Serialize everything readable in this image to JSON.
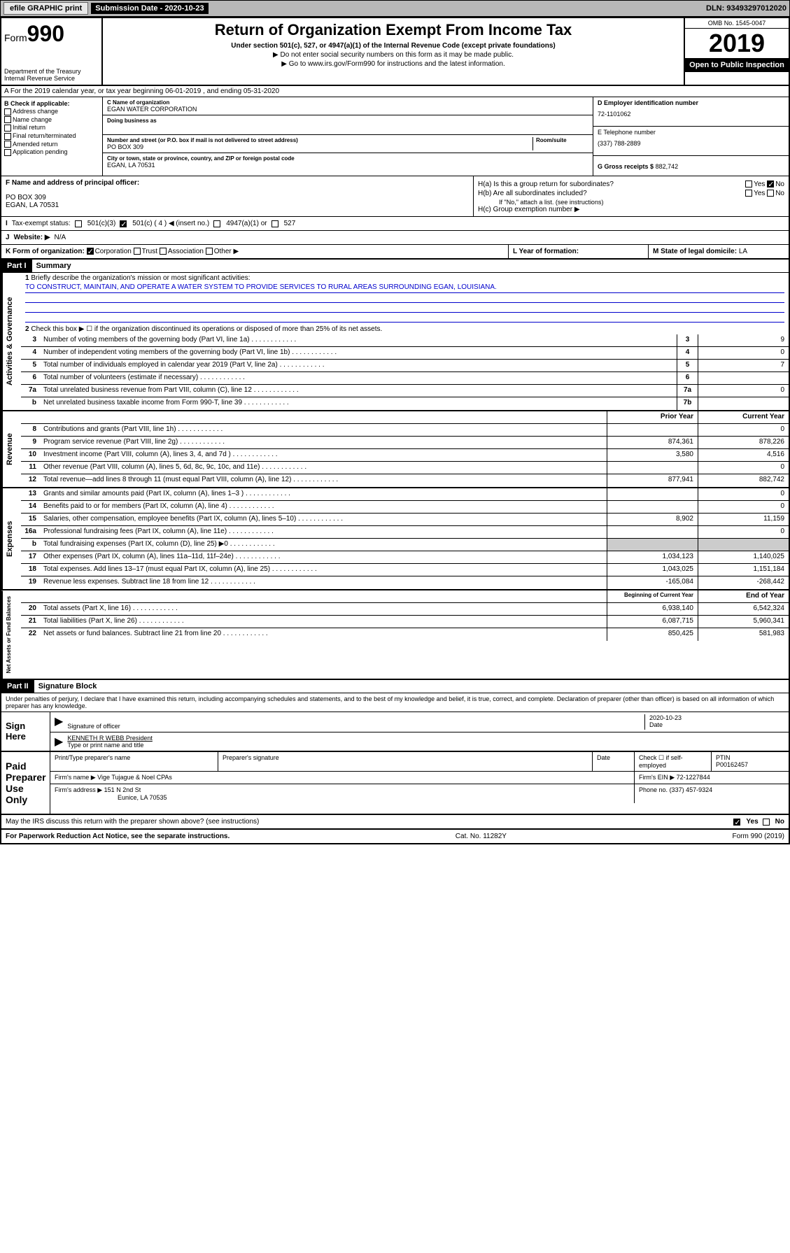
{
  "topbar": {
    "efile": "efile GRAPHIC print",
    "subdate_label": "Submission Date - 2020-10-23",
    "dln": "DLN: 93493297012020"
  },
  "header": {
    "form_label": "Form",
    "form_num": "990",
    "dept": "Department of the Treasury",
    "irs": "Internal Revenue Service",
    "title": "Return of Organization Exempt From Income Tax",
    "subtitle": "Under section 501(c), 527, or 4947(a)(1) of the Internal Revenue Code (except private foundations)",
    "note1": "▶ Do not enter social security numbers on this form as it may be made public.",
    "note2": "▶ Go to www.irs.gov/Form990 for instructions and the latest information.",
    "omb": "OMB No. 1545-0047",
    "year": "2019",
    "inspect": "Open to Public Inspection"
  },
  "rowA": "A For the 2019 calendar year, or tax year beginning 06-01-2019    , and ending 05-31-2020",
  "boxB": {
    "label": "B Check if applicable:",
    "opts": [
      "Address change",
      "Name change",
      "Initial return",
      "Final return/terminated",
      "Amended return",
      "Application pending"
    ]
  },
  "boxC": {
    "name_label": "C Name of organization",
    "name": "EGAN WATER CORPORATION",
    "dba_label": "Doing business as",
    "addr_label": "Number and street (or P.O. box if mail is not delivered to street address)",
    "room_label": "Room/suite",
    "addr": "PO BOX 309",
    "city_label": "City or town, state or province, country, and ZIP or foreign postal code",
    "city": "EGAN, LA  70531"
  },
  "boxD": {
    "ein_label": "D Employer identification number",
    "ein": "72-1101062",
    "phone_label": "E Telephone number",
    "phone": "(337) 788-2889",
    "gross_label": "G Gross receipts $",
    "gross": "882,742"
  },
  "boxF": {
    "label": "F  Name and address of principal officer:",
    "addr1": "PO BOX 309",
    "addr2": "EGAN, LA  70531"
  },
  "boxH": {
    "ha": "H(a)  Is this a group return for subordinates?",
    "hb": "H(b)  Are all subordinates included?",
    "hb_note": "If \"No,\" attach a list. (see instructions)",
    "hc": "H(c)  Group exemption number ▶",
    "yes": "Yes",
    "no": "No"
  },
  "rowI": {
    "label": "Tax-exempt status:",
    "o1": "501(c)(3)",
    "o2": "501(c) ( 4 ) ◀ (insert no.)",
    "o3": "4947(a)(1) or",
    "o4": "527"
  },
  "rowJ": {
    "label": "Website: ▶",
    "val": "N/A"
  },
  "rowK": {
    "label": "K Form of organization:",
    "corp": "Corporation",
    "trust": "Trust",
    "assoc": "Association",
    "other": "Other ▶",
    "l_label": "L Year of formation:",
    "m_label": "M State of legal domicile:",
    "m_val": "LA"
  },
  "part1": {
    "hdr": "Part I",
    "title": "Summary",
    "tab1": "Activities & Governance",
    "tab2": "Revenue",
    "tab3": "Expenses",
    "tab4": "Net Assets or Fund Balances",
    "l1": "Briefly describe the organization's mission or most significant activities:",
    "mission": "TO CONSTRUCT, MAINTAIN, AND OPERATE A WATER SYSTEM TO PROVIDE SERVICES TO RURAL AREAS SURROUNDING EGAN, LOUISIANA.",
    "l2": "Check this box ▶ ☐  if the organization discontinued its operations or disposed of more than 25% of its net assets.",
    "lines_gov": [
      {
        "n": "3",
        "d": "Number of voting members of the governing body (Part VI, line 1a)",
        "b": "3",
        "v": "9"
      },
      {
        "n": "4",
        "d": "Number of independent voting members of the governing body (Part VI, line 1b)",
        "b": "4",
        "v": "0"
      },
      {
        "n": "5",
        "d": "Total number of individuals employed in calendar year 2019 (Part V, line 2a)",
        "b": "5",
        "v": "7"
      },
      {
        "n": "6",
        "d": "Total number of volunteers (estimate if necessary)",
        "b": "6",
        "v": ""
      },
      {
        "n": "7a",
        "d": "Total unrelated business revenue from Part VIII, column (C), line 12",
        "b": "7a",
        "v": "0"
      },
      {
        "n": "b",
        "d": "Net unrelated business taxable income from Form 990-T, line 39",
        "b": "7b",
        "v": ""
      }
    ],
    "prior": "Prior Year",
    "current": "Current Year",
    "lines_rev": [
      {
        "n": "8",
        "d": "Contributions and grants (Part VIII, line 1h)",
        "p": "",
        "c": "0"
      },
      {
        "n": "9",
        "d": "Program service revenue (Part VIII, line 2g)",
        "p": "874,361",
        "c": "878,226"
      },
      {
        "n": "10",
        "d": "Investment income (Part VIII, column (A), lines 3, 4, and 7d )",
        "p": "3,580",
        "c": "4,516"
      },
      {
        "n": "11",
        "d": "Other revenue (Part VIII, column (A), lines 5, 6d, 8c, 9c, 10c, and 11e)",
        "p": "",
        "c": "0"
      },
      {
        "n": "12",
        "d": "Total revenue—add lines 8 through 11 (must equal Part VIII, column (A), line 12)",
        "p": "877,941",
        "c": "882,742"
      }
    ],
    "lines_exp": [
      {
        "n": "13",
        "d": "Grants and similar amounts paid (Part IX, column (A), lines 1–3 )",
        "p": "",
        "c": "0"
      },
      {
        "n": "14",
        "d": "Benefits paid to or for members (Part IX, column (A), line 4)",
        "p": "",
        "c": "0"
      },
      {
        "n": "15",
        "d": "Salaries, other compensation, employee benefits (Part IX, column (A), lines 5–10)",
        "p": "8,902",
        "c": "11,159"
      },
      {
        "n": "16a",
        "d": "Professional fundraising fees (Part IX, column (A), line 11e)",
        "p": "",
        "c": "0"
      },
      {
        "n": "b",
        "d": "Total fundraising expenses (Part IX, column (D), line 25) ▶0",
        "p": "—",
        "c": "—"
      },
      {
        "n": "17",
        "d": "Other expenses (Part IX, column (A), lines 11a–11d, 11f–24e)",
        "p": "1,034,123",
        "c": "1,140,025"
      },
      {
        "n": "18",
        "d": "Total expenses. Add lines 13–17 (must equal Part IX, column (A), line 25)",
        "p": "1,043,025",
        "c": "1,151,184"
      },
      {
        "n": "19",
        "d": "Revenue less expenses. Subtract line 18 from line 12",
        "p": "-165,084",
        "c": "-268,442"
      }
    ],
    "begin": "Beginning of Current Year",
    "end": "End of Year",
    "lines_net": [
      {
        "n": "20",
        "d": "Total assets (Part X, line 16)",
        "p": "6,938,140",
        "c": "6,542,324"
      },
      {
        "n": "21",
        "d": "Total liabilities (Part X, line 26)",
        "p": "6,087,715",
        "c": "5,960,341"
      },
      {
        "n": "22",
        "d": "Net assets or fund balances. Subtract line 21 from line 20",
        "p": "850,425",
        "c": "581,983"
      }
    ]
  },
  "part2": {
    "hdr": "Part II",
    "title": "Signature Block",
    "declare": "Under penalties of perjury, I declare that I have examined this return, including accompanying schedules and statements, and to the best of my knowledge and belief, it is true, correct, and complete. Declaration of preparer (other than officer) is based on all information of which preparer has any knowledge.",
    "sign": "Sign Here",
    "sig_officer": "Signature of officer",
    "sig_date": "2020-10-23",
    "date_label": "Date",
    "officer_name": "KENNETH R WEBB President",
    "name_label": "Type or print name and title",
    "paid": "Paid Preparer Use Only",
    "prep_name_label": "Print/Type preparer's name",
    "prep_sig_label": "Preparer's signature",
    "check_self": "Check ☐ if self-employed",
    "ptin_label": "PTIN",
    "ptin": "P00162457",
    "firm_name_label": "Firm's name    ▶",
    "firm_name": "Vige Tujague & Noel CPAs",
    "firm_ein_label": "Firm's EIN ▶",
    "firm_ein": "72-1227844",
    "firm_addr_label": "Firm's address ▶",
    "firm_addr1": "151 N 2nd St",
    "firm_addr2": "Eunice, LA  70535",
    "phone_label": "Phone no.",
    "phone": "(337) 457-9324",
    "discuss": "May the IRS discuss this return with the preparer shown above? (see instructions)"
  },
  "footer": {
    "pra": "For Paperwork Reduction Act Notice, see the separate instructions.",
    "cat": "Cat. No. 11282Y",
    "form": "Form 990 (2019)"
  }
}
